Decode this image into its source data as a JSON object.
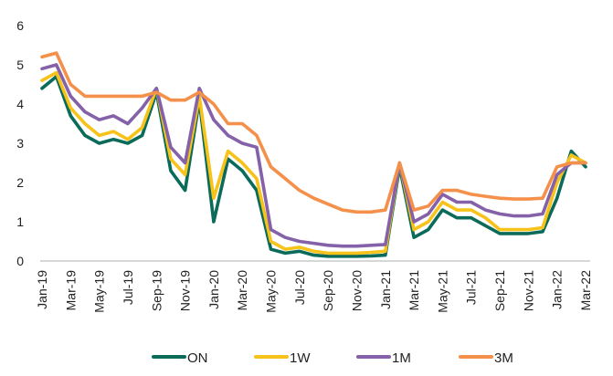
{
  "chart_data": {
    "type": "line",
    "title": "",
    "xlabel": "",
    "ylabel": "",
    "ylim": [
      0,
      6
    ],
    "yticks": [
      0,
      1,
      2,
      3,
      4,
      5,
      6
    ],
    "x_tick_labels": [
      "Jan-19",
      "Mar-19",
      "May-19",
      "Jul-19",
      "Sep-19",
      "Nov-19",
      "Jan-20",
      "Mar-20",
      "May-20",
      "Jul-20",
      "Sep-20",
      "Nov-20",
      "Jan-21",
      "Mar-21",
      "May-21",
      "Jul-21",
      "Sep-21",
      "Nov-21",
      "Jan-22",
      "Mar-22"
    ],
    "grid": false,
    "legend_position": "bottom",
    "x": [
      "2019-01",
      "2019-02",
      "2019-03",
      "2019-04",
      "2019-05",
      "2019-06",
      "2019-07",
      "2019-08",
      "2019-09",
      "2019-10",
      "2019-11",
      "2019-12",
      "2020-01",
      "2020-02",
      "2020-03",
      "2020-04",
      "2020-05",
      "2020-06",
      "2020-07",
      "2020-08",
      "2020-09",
      "2020-10",
      "2020-11",
      "2020-12",
      "2021-01",
      "2021-02",
      "2021-03",
      "2021-04",
      "2021-05",
      "2021-06",
      "2021-07",
      "2021-08",
      "2021-09",
      "2021-10",
      "2021-11",
      "2021-12",
      "2022-01",
      "2022-02",
      "2022-03"
    ],
    "series": [
      {
        "name": "ON",
        "color": "#0B6B5A",
        "values": [
          4.4,
          4.7,
          3.7,
          3.2,
          3.0,
          3.1,
          3.0,
          3.2,
          4.3,
          2.3,
          1.8,
          4.1,
          1.0,
          2.6,
          2.3,
          1.8,
          0.3,
          0.2,
          0.25,
          0.15,
          0.12,
          0.12,
          0.12,
          0.13,
          0.15,
          2.4,
          0.6,
          0.8,
          1.3,
          1.1,
          1.1,
          0.9,
          0.7,
          0.7,
          0.7,
          0.75,
          1.6,
          2.8,
          2.4
        ]
      },
      {
        "name": "1W",
        "color": "#F7C21A",
        "values": [
          4.6,
          4.8,
          3.9,
          3.5,
          3.2,
          3.3,
          3.1,
          3.4,
          4.4,
          2.6,
          2.2,
          4.2,
          1.6,
          2.8,
          2.5,
          2.1,
          0.5,
          0.3,
          0.35,
          0.25,
          0.2,
          0.2,
          0.2,
          0.22,
          0.25,
          2.5,
          0.8,
          1.0,
          1.5,
          1.3,
          1.3,
          1.1,
          0.8,
          0.8,
          0.8,
          0.85,
          2.0,
          2.7,
          2.5
        ]
      },
      {
        "name": "1M",
        "color": "#8461A8",
        "values": [
          4.9,
          5.0,
          4.2,
          3.8,
          3.6,
          3.7,
          3.5,
          3.9,
          4.4,
          2.9,
          2.5,
          4.4,
          3.6,
          3.2,
          3.0,
          2.9,
          0.8,
          0.6,
          0.5,
          0.45,
          0.4,
          0.38,
          0.38,
          0.4,
          0.42,
          2.5,
          1.0,
          1.2,
          1.7,
          1.5,
          1.5,
          1.3,
          1.2,
          1.15,
          1.15,
          1.2,
          2.2,
          2.5,
          2.5
        ]
      },
      {
        "name": "3M",
        "color": "#F4904A",
        "values": [
          5.2,
          5.3,
          4.5,
          4.2,
          4.2,
          4.2,
          4.2,
          4.2,
          4.3,
          4.1,
          4.1,
          4.3,
          4.0,
          3.5,
          3.5,
          3.2,
          2.4,
          2.1,
          1.8,
          1.6,
          1.45,
          1.3,
          1.25,
          1.25,
          1.3,
          2.5,
          1.3,
          1.4,
          1.8,
          1.8,
          1.7,
          1.65,
          1.6,
          1.58,
          1.58,
          1.6,
          2.4,
          2.5,
          2.5
        ]
      }
    ]
  }
}
